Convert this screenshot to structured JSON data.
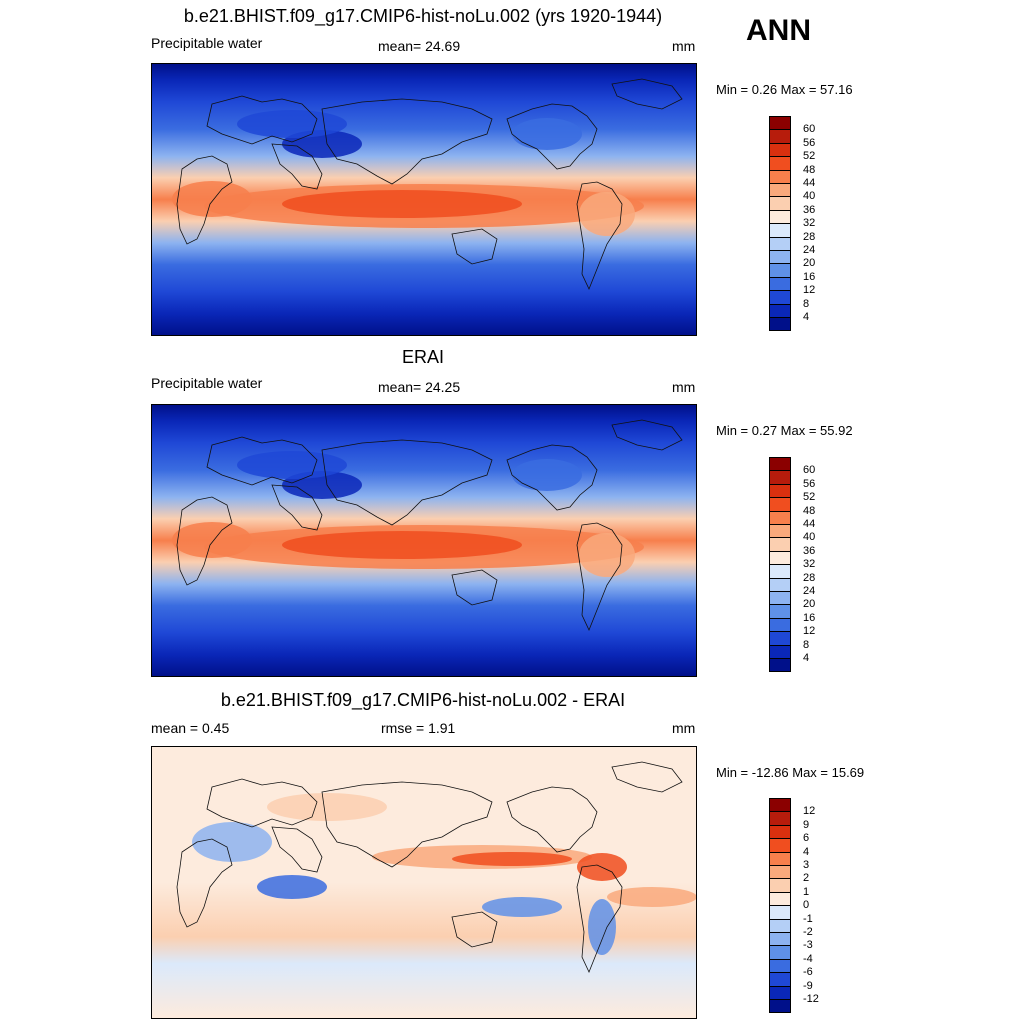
{
  "season_label": "ANN",
  "panels": [
    {
      "title": "b.e21.BHIST.f09_g17.CMIP6-hist-noLu.002 (yrs 1920-1944)",
      "left_label": "Precipitable water",
      "center_label": "mean=  24.69",
      "units": "mm",
      "minmax": "Min =   0.26 Max =  57.16",
      "kind": "abs",
      "colorbar_labels": [
        "60",
        "56",
        "52",
        "48",
        "44",
        "40",
        "36",
        "32",
        "28",
        "24",
        "20",
        "16",
        "12",
        "8",
        "4"
      ],
      "colorbar_colors": [
        "#8b0000",
        "#b71c0c",
        "#d9300f",
        "#f04e1f",
        "#f77f4c",
        "#f9a97c",
        "#fbcfb0",
        "#fdebdd",
        "#dbe9fb",
        "#b4cff6",
        "#8db3f0",
        "#5f91e7",
        "#3a6ce0",
        "#1f48d6",
        "#0a27b8",
        "#00108a"
      ]
    },
    {
      "title": "ERAI",
      "left_label": "Precipitable water",
      "center_label": "mean=  24.25",
      "units": "mm",
      "minmax": "Min =   0.27 Max =  55.92",
      "kind": "abs",
      "colorbar_labels": [
        "60",
        "56",
        "52",
        "48",
        "44",
        "40",
        "36",
        "32",
        "28",
        "24",
        "20",
        "16",
        "12",
        "8",
        "4"
      ],
      "colorbar_colors": [
        "#8b0000",
        "#b71c0c",
        "#d9300f",
        "#f04e1f",
        "#f77f4c",
        "#f9a97c",
        "#fbcfb0",
        "#fdebdd",
        "#dbe9fb",
        "#b4cff6",
        "#8db3f0",
        "#5f91e7",
        "#3a6ce0",
        "#1f48d6",
        "#0a27b8",
        "#00108a"
      ]
    },
    {
      "title": "b.e21.BHIST.f09_g17.CMIP6-hist-noLu.002 - ERAI",
      "left_label": "mean =   0.45",
      "center_label": "rmse =   1.91",
      "units": "mm",
      "minmax": "Min = -12.86 Max =  15.69",
      "kind": "diff",
      "colorbar_labels": [
        "12",
        "9",
        "6",
        "4",
        "3",
        "2",
        "1",
        "0",
        "-1",
        "-2",
        "-3",
        "-4",
        "-6",
        "-9",
        "-12"
      ],
      "colorbar_colors": [
        "#8b0000",
        "#b71c0c",
        "#d9300f",
        "#f04e1f",
        "#f77f4c",
        "#f9a97c",
        "#fbcfb0",
        "#fdebdd",
        "#dbe9fb",
        "#b4cff6",
        "#8db3f0",
        "#5f91e7",
        "#3a6ce0",
        "#1f48d6",
        "#0a27b8",
        "#00108a"
      ]
    }
  ],
  "chart_data": [
    {
      "type": "heatmap",
      "title": "b.e21.BHIST.f09_g17.CMIP6-hist-noLu.002 (yrs 1920-1944)",
      "variable": "Precipitable water",
      "units": "mm",
      "mean": 24.69,
      "min": 0.26,
      "max": 57.16,
      "contour_levels": [
        4,
        8,
        12,
        16,
        20,
        24,
        28,
        32,
        36,
        40,
        44,
        48,
        52,
        56,
        60
      ]
    },
    {
      "type": "heatmap",
      "title": "ERAI",
      "variable": "Precipitable water",
      "units": "mm",
      "mean": 24.25,
      "min": 0.27,
      "max": 55.92,
      "contour_levels": [
        4,
        8,
        12,
        16,
        20,
        24,
        28,
        32,
        36,
        40,
        44,
        48,
        52,
        56,
        60
      ]
    },
    {
      "type": "heatmap",
      "title": "b.e21.BHIST.f09_g17.CMIP6-hist-noLu.002 - ERAI",
      "units": "mm",
      "mean": 0.45,
      "rmse": 1.91,
      "min": -12.86,
      "max": 15.69,
      "contour_levels": [
        -12,
        -9,
        -6,
        -4,
        -3,
        -2,
        -1,
        0,
        1,
        2,
        3,
        4,
        6,
        9,
        12
      ]
    }
  ]
}
